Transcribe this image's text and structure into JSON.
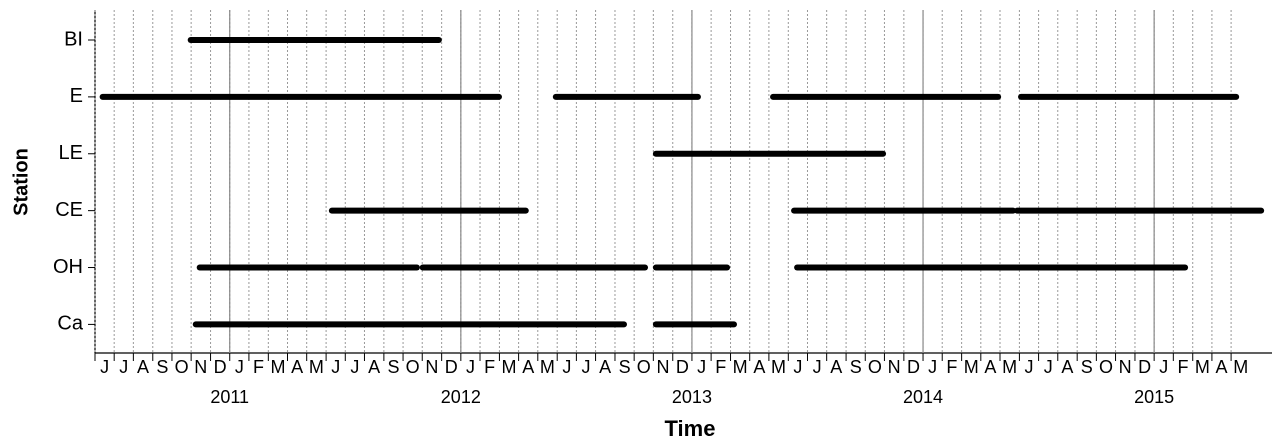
{
  "chart_data": {
    "type": "timeline",
    "x_label": "Time",
    "y_label": "Station",
    "xlim": [
      2010.417,
      2015.51
    ],
    "xticks": [
      2011,
      2012,
      2013,
      2014,
      2015
    ],
    "month_ticks": [
      {
        "value": 2010.417,
        "label": "J"
      },
      {
        "value": 2010.5,
        "label": "J"
      },
      {
        "value": 2010.583,
        "label": "A"
      },
      {
        "value": 2010.667,
        "label": "S"
      },
      {
        "value": 2010.75,
        "label": "O"
      },
      {
        "value": 2010.833,
        "label": "N"
      },
      {
        "value": 2010.917,
        "label": "D"
      },
      {
        "value": 2011,
        "label": "J"
      },
      {
        "value": 2011.083,
        "label": "F"
      },
      {
        "value": 2011.167,
        "label": "M"
      },
      {
        "value": 2011.25,
        "label": "A"
      },
      {
        "value": 2011.333,
        "label": "M"
      },
      {
        "value": 2011.417,
        "label": "J"
      },
      {
        "value": 2011.5,
        "label": "J"
      },
      {
        "value": 2011.583,
        "label": "A"
      },
      {
        "value": 2011.667,
        "label": "S"
      },
      {
        "value": 2011.75,
        "label": "O"
      },
      {
        "value": 2011.833,
        "label": "N"
      },
      {
        "value": 2011.917,
        "label": "D"
      },
      {
        "value": 2012,
        "label": "J"
      },
      {
        "value": 2012.083,
        "label": "F"
      },
      {
        "value": 2012.167,
        "label": "M"
      },
      {
        "value": 2012.25,
        "label": "A"
      },
      {
        "value": 2012.333,
        "label": "M"
      },
      {
        "value": 2012.417,
        "label": "J"
      },
      {
        "value": 2012.5,
        "label": "J"
      },
      {
        "value": 2012.583,
        "label": "A"
      },
      {
        "value": 2012.667,
        "label": "S"
      },
      {
        "value": 2012.75,
        "label": "O"
      },
      {
        "value": 2012.833,
        "label": "N"
      },
      {
        "value": 2012.917,
        "label": "D"
      },
      {
        "value": 2013,
        "label": "J"
      },
      {
        "value": 2013.083,
        "label": "F"
      },
      {
        "value": 2013.167,
        "label": "M"
      },
      {
        "value": 2013.25,
        "label": "A"
      },
      {
        "value": 2013.333,
        "label": "M"
      },
      {
        "value": 2013.417,
        "label": "J"
      },
      {
        "value": 2013.5,
        "label": "J"
      },
      {
        "value": 2013.583,
        "label": "A"
      },
      {
        "value": 2013.667,
        "label": "S"
      },
      {
        "value": 2013.75,
        "label": "O"
      },
      {
        "value": 2013.833,
        "label": "N"
      },
      {
        "value": 2013.917,
        "label": "D"
      },
      {
        "value": 2014,
        "label": "J"
      },
      {
        "value": 2014.083,
        "label": "F"
      },
      {
        "value": 2014.167,
        "label": "M"
      },
      {
        "value": 2014.25,
        "label": "A"
      },
      {
        "value": 2014.333,
        "label": "M"
      },
      {
        "value": 2014.417,
        "label": "J"
      },
      {
        "value": 2014.5,
        "label": "J"
      },
      {
        "value": 2014.583,
        "label": "A"
      },
      {
        "value": 2014.667,
        "label": "S"
      },
      {
        "value": 2014.75,
        "label": "O"
      },
      {
        "value": 2014.833,
        "label": "N"
      },
      {
        "value": 2014.917,
        "label": "D"
      },
      {
        "value": 2015,
        "label": "J"
      },
      {
        "value": 2015.083,
        "label": "F"
      },
      {
        "value": 2015.167,
        "label": "M"
      },
      {
        "value": 2015.25,
        "label": "A"
      },
      {
        "value": 2015.333,
        "label": "M"
      }
    ],
    "color": "#000000",
    "rows": [
      {
        "name": "BI",
        "segments": [
          [
            2010.831,
            2011.905
          ]
        ]
      },
      {
        "name": "E",
        "segments": [
          [
            2010.45,
            2012.165
          ],
          [
            2012.411,
            2013.026
          ],
          [
            2013.351,
            2014.325
          ],
          [
            2014.424,
            2015.355
          ]
        ]
      },
      {
        "name": "LE",
        "segments": [
          [
            2012.844,
            2013.827
          ]
        ]
      },
      {
        "name": "CE",
        "segments": [
          [
            2011.442,
            2012.281
          ],
          [
            2013.442,
            2014.39
          ],
          [
            2014.407,
            2015.463
          ]
        ]
      },
      {
        "name": "OH",
        "segments": [
          [
            2010.87,
            2011.81
          ],
          [
            2011.835,
            2012.797
          ],
          [
            2012.844,
            2013.152
          ],
          [
            2013.455,
            2015.134
          ]
        ]
      },
      {
        "name": "Ca",
        "segments": [
          [
            2010.853,
            2012.706
          ],
          [
            2012.844,
            2013.182
          ]
        ]
      }
    ]
  }
}
